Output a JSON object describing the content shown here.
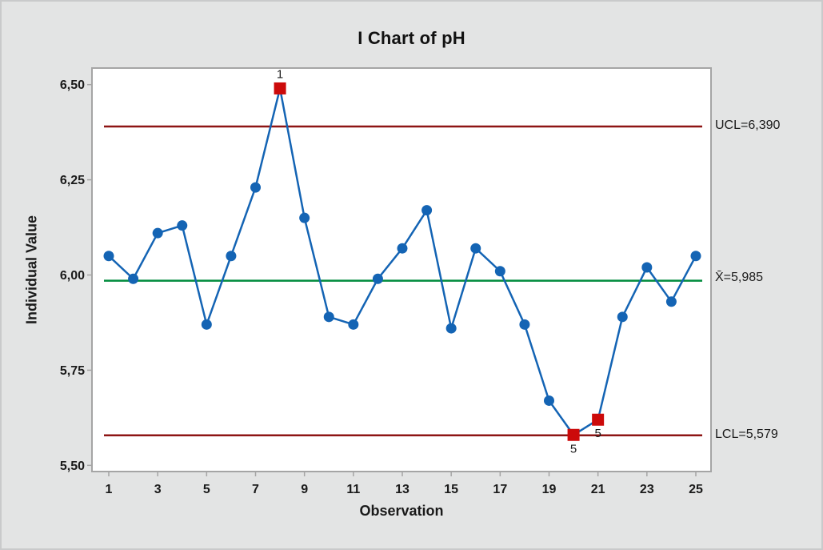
{
  "chart_data": {
    "type": "line",
    "chart_kind": "individuals-control-chart",
    "title": "I Chart of pH",
    "xlabel": "Observation",
    "ylabel": "Individual Value",
    "x": [
      1,
      2,
      3,
      4,
      5,
      6,
      7,
      8,
      9,
      10,
      11,
      12,
      13,
      14,
      15,
      16,
      17,
      18,
      19,
      20,
      21,
      22,
      23,
      24,
      25
    ],
    "values": [
      6.05,
      5.99,
      6.11,
      6.13,
      5.87,
      6.05,
      6.23,
      6.49,
      6.15,
      5.89,
      5.87,
      5.99,
      6.07,
      6.17,
      5.86,
      6.07,
      6.01,
      5.87,
      5.67,
      5.58,
      5.62,
      5.89,
      6.02,
      5.93,
      6.05
    ],
    "ylim": [
      5.5,
      6.5
    ],
    "yticks": [
      5.5,
      5.75,
      6.0,
      6.25,
      6.5
    ],
    "ytick_labels": [
      "5,50",
      "5,75",
      "6,00",
      "6,25",
      "6,50"
    ],
    "xticks": [
      1,
      3,
      5,
      7,
      9,
      11,
      13,
      15,
      17,
      19,
      21,
      23,
      25
    ],
    "ucl": 6.39,
    "center": 5.985,
    "lcl": 5.579,
    "ucl_label": "UCL=6,390",
    "center_label": "X̄=5,985",
    "lcl_label": "LCL=5,579",
    "out_of_control": [
      {
        "obs": 8,
        "value": 6.49,
        "test_label": "1",
        "label_position": "above"
      },
      {
        "obs": 20,
        "value": 5.58,
        "test_label": "5",
        "label_position": "below"
      },
      {
        "obs": 21,
        "value": 5.62,
        "test_label": "5",
        "label_position": "below"
      }
    ],
    "grid": "off",
    "legend": "none",
    "colors": {
      "series": "#1464B4",
      "out_of_control_marker": "#CC0A0A",
      "control_limit_line": "#8E1514",
      "center_line": "#008B3D",
      "plot_background": "#FFFFFF",
      "figure_background": "#E3E4E4",
      "axis": "#A5A5A5",
      "text": "#1A1A1A"
    }
  }
}
